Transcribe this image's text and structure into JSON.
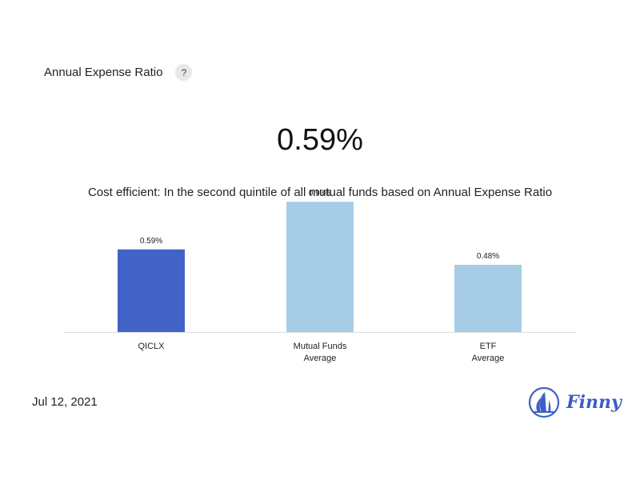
{
  "header": {
    "title": "Annual Expense Ratio",
    "help_label": "?"
  },
  "summary": {
    "value": "0.59%",
    "description": "Cost efficient: In the second quintile of all mutual funds based on Annual Expense Ratio"
  },
  "chart_data": {
    "type": "bar",
    "categories": [
      [
        "QICLX"
      ],
      [
        "Mutual Funds",
        "Average"
      ],
      [
        "ETF",
        "Average"
      ]
    ],
    "values": [
      0.59,
      0.93,
      0.48
    ],
    "value_labels": [
      "0.59%",
      "0.93%",
      "0.48%"
    ],
    "ylim": [
      0,
      1.0
    ],
    "grid": false,
    "colors": [
      "#4262c8",
      "#a7cde6",
      "#a7cde6"
    ]
  },
  "footer": {
    "date": "Jul 12, 2021",
    "brand": "Finny",
    "brand_icon": "sailboat-icon",
    "brand_color": "#3d5fc4"
  }
}
